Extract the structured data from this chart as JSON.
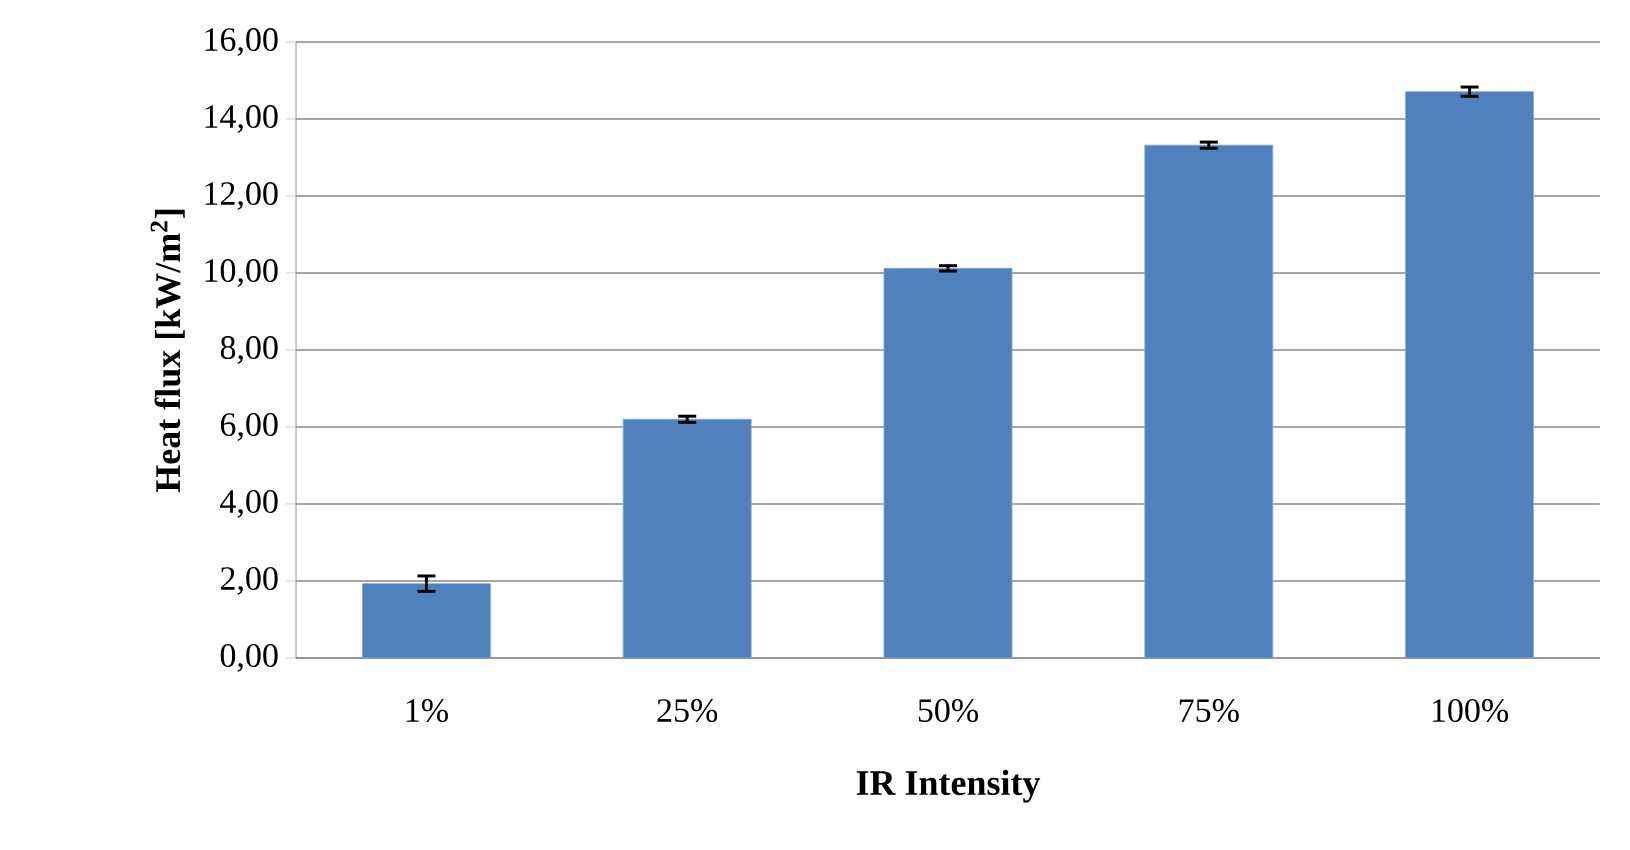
{
  "chart_data": {
    "type": "bar",
    "xlabel": "IR Intensity",
    "ylabel": "Heat flux [kW/m$^{2}$]",
    "categories": [
      "1%",
      "25%",
      "50%",
      "75%",
      "100%"
    ],
    "values": [
      1.93,
      6.2,
      10.12,
      13.32,
      14.71
    ],
    "errors": [
      0.2,
      0.08,
      0.07,
      0.08,
      0.12
    ],
    "color": "#4f81bd",
    "ylim": [
      0,
      16
    ],
    "yticks": [
      {
        "value": 0,
        "label": "0,00"
      },
      {
        "value": 2,
        "label": "2,00"
      },
      {
        "value": 4,
        "label": "4,00"
      },
      {
        "value": 6,
        "label": "6,00"
      },
      {
        "value": 8,
        "label": "8,00"
      },
      {
        "value": 10,
        "label": "10,00"
      },
      {
        "value": 12,
        "label": "12,00"
      },
      {
        "value": 14,
        "label": "14,00"
      },
      {
        "value": 16,
        "label": "16,00"
      }
    ],
    "grid": "y"
  }
}
